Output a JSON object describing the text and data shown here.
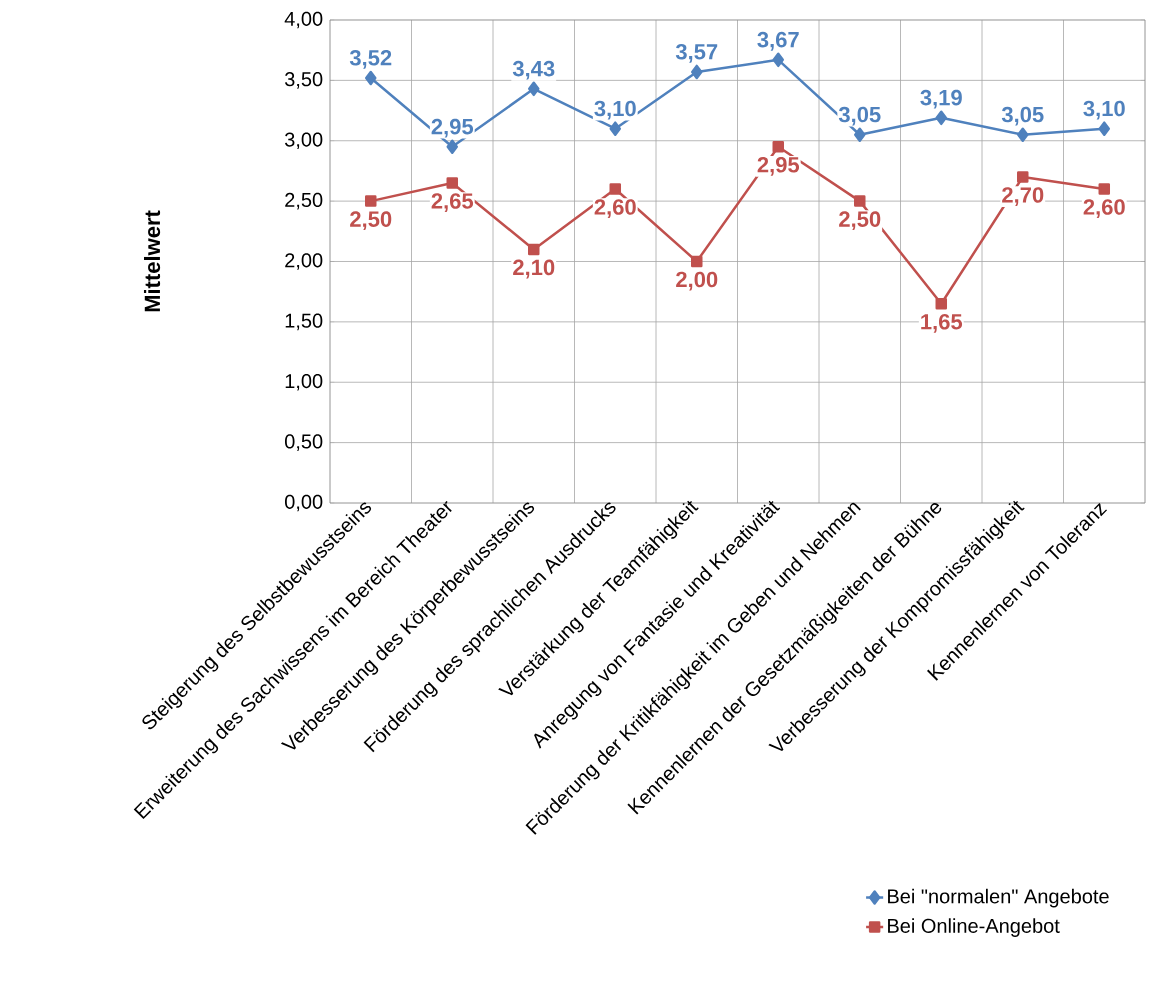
{
  "chart_data": {
    "type": "line",
    "ylabel": "Mittelwert",
    "categories": [
      "Steigerung des Selbstbewusstseins",
      "Erweiterung des Sachwissens im Bereich Theater",
      "Verbesserung des Körperbewusstseins",
      "Förderung des sprachlichen Ausdrucks",
      "Verstärkung der Teamfähigkeit",
      "Anregung von Fantasie und Kreativität",
      "Förderung der Kritikfähigkeit im Geben und Nehmen",
      "Kennenlernen der Gesetzmäßigkeiten der Bühne",
      "Verbesserung der Kompromissfähigkeit",
      "Kennenlernen von Toleranz"
    ],
    "series": [
      {
        "name": "Bei \"normalen\" Angebote",
        "color": "#4f81bd",
        "marker": "diamond",
        "values": [
          3.52,
          2.95,
          3.43,
          3.1,
          3.57,
          3.67,
          3.05,
          3.19,
          3.05,
          3.1
        ],
        "value_labels": [
          "3,52",
          "2,95",
          "3,43",
          "3,10",
          "3,57",
          "3,67",
          "3,05",
          "3,19",
          "3,05",
          "3,10"
        ]
      },
      {
        "name": "Bei Online-Angebot",
        "color": "#c0504d",
        "marker": "square",
        "values": [
          2.5,
          2.65,
          2.1,
          2.6,
          2.0,
          2.95,
          2.5,
          1.65,
          2.7,
          2.6
        ],
        "value_labels": [
          "2,50",
          "2,65",
          "2,10",
          "2,60",
          "2,00",
          "2,95",
          "2,50",
          "1,65",
          "2,70",
          "2,60"
        ]
      }
    ],
    "ylim": [
      0,
      4
    ],
    "yticks": [
      {
        "value": 0,
        "label": "0,00"
      },
      {
        "value": 0.5,
        "label": "0,50"
      },
      {
        "value": 1,
        "label": "1,00"
      },
      {
        "value": 1.5,
        "label": "1,50"
      },
      {
        "value": 2,
        "label": "2,00"
      },
      {
        "value": 2.5,
        "label": "2,50"
      },
      {
        "value": 3,
        "label": "3,00"
      },
      {
        "value": 3.5,
        "label": "3,50"
      },
      {
        "value": 4,
        "label": "4,00"
      }
    ],
    "grid": true,
    "legend": "bottom right",
    "line_style": "solid"
  }
}
